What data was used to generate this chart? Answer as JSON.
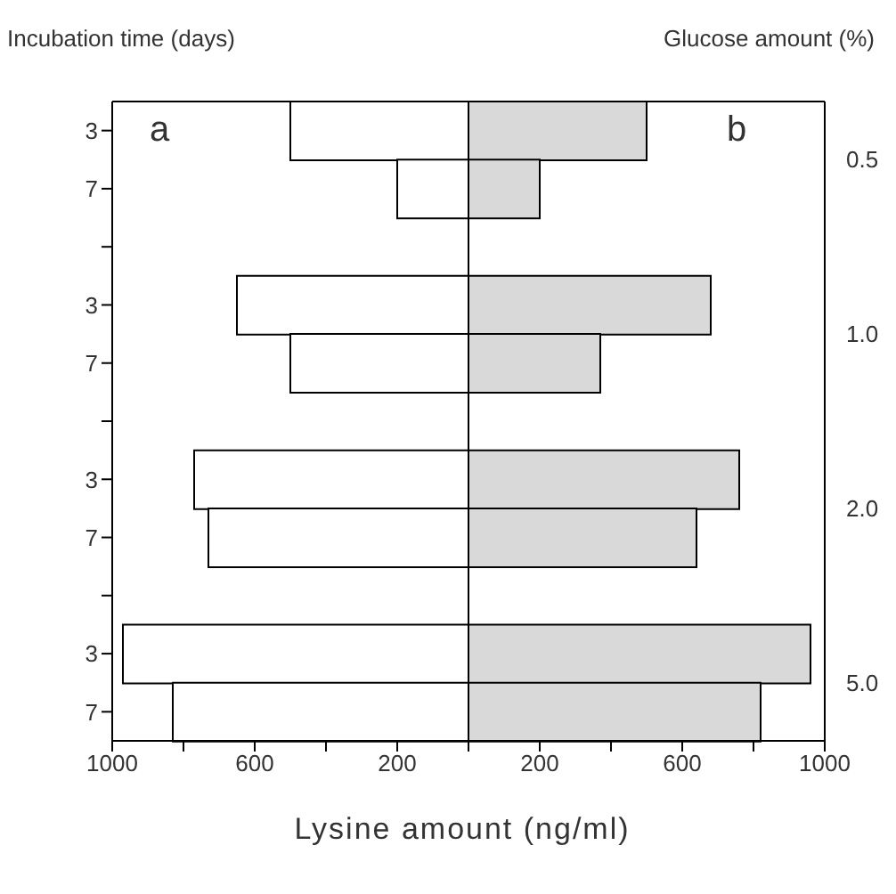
{
  "chart_data": {
    "type": "bar",
    "orientation": "horizontal",
    "ylabel": "Incubation time (days)",
    "y2label": "Glucose amount (%)",
    "xlabel": "Lysine amount (ng/ml)",
    "categories": [
      "3",
      "7",
      null,
      "3",
      "7",
      null,
      "3",
      "7",
      null,
      "3",
      "7"
    ],
    "y2_categories": [
      "0.5",
      null,
      null,
      "1.0",
      null,
      null,
      "2.0",
      null,
      null,
      "5.0",
      null
    ],
    "stacked": true,
    "series": [
      {
        "color": "#ffffff",
        "values": [
          -500,
          -200,
          null,
          -650,
          -500,
          null,
          -770,
          -730,
          null,
          -970,
          -830
        ]
      },
      {
        "color": "#d9d9d9",
        "values": [
          500,
          200,
          null,
          680,
          370,
          null,
          760,
          640,
          null,
          960,
          820
        ]
      }
    ],
    "xlim": [
      -1000,
      1000
    ],
    "xticks": [
      {
        "value": -1000,
        "label": "1000"
      },
      {
        "value": -800,
        "label": null
      },
      {
        "value": -600,
        "label": "600"
      },
      {
        "value": -400,
        "label": null
      },
      {
        "value": -200,
        "label": "200"
      },
      {
        "value": 0,
        "label": null
      },
      {
        "value": 200,
        "label": "200"
      },
      {
        "value": 400,
        "label": null
      },
      {
        "value": 600,
        "label": "600"
      },
      {
        "value": 800,
        "label": null
      },
      {
        "value": 1000,
        "label": "1000"
      }
    ],
    "ref_lines": [
      {
        "axis": "x",
        "value": 0,
        "color": "#000000"
      }
    ],
    "annotations": [
      "a",
      "b"
    ]
  }
}
